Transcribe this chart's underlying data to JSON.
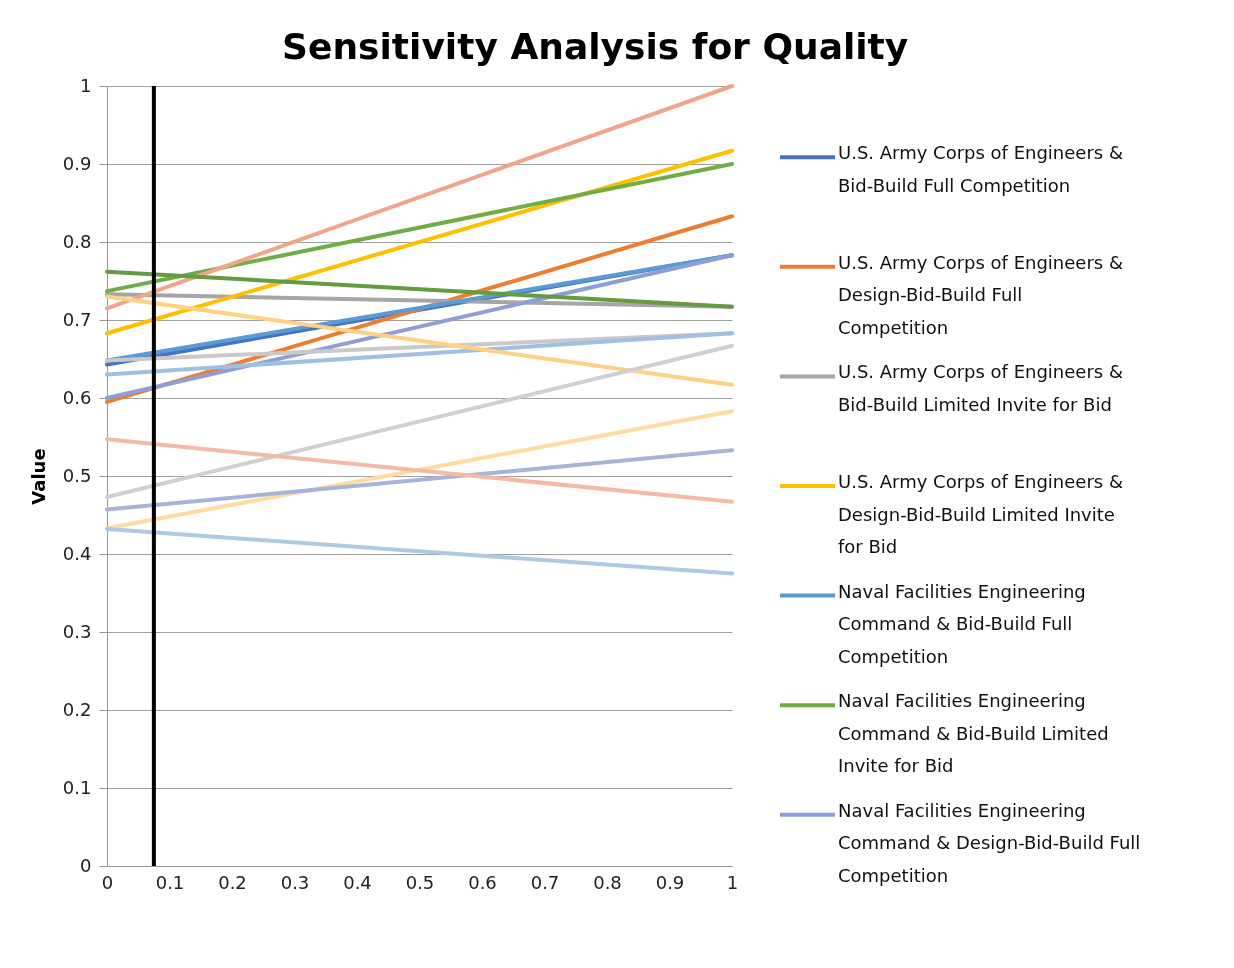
{
  "chart_data": {
    "type": "line",
    "title": "Sensitivity Analysis for Quality",
    "ylabel": "Value",
    "x": [
      0,
      1
    ],
    "series": [
      {
        "name": "U.S. Army Corps of Engineers & Bid-Build Full Competition",
        "color": "#4472c4",
        "values": [
          0.643,
          0.783
        ]
      },
      {
        "name": "U.S. Army Corps of Engineers & Design-Bid-Build Full Competition",
        "color": "#ed7d31",
        "values": [
          0.595,
          0.833
        ]
      },
      {
        "name": "U.S. Army Corps of Engineers & Bid-Build Limited Invite for Bid",
        "color": "#a5a5a5",
        "values": [
          0.733,
          0.717
        ]
      },
      {
        "name": "U.S. Army Corps of Engineers & Design-Bid-Build Limited Invite for Bid",
        "color": "#ffc000",
        "values": [
          0.683,
          0.917
        ]
      },
      {
        "name": "Naval Facilities Engineering Command & Bid-Build Full Competition",
        "color": "#5b9bd5",
        "values": [
          0.648,
          0.783
        ]
      },
      {
        "name": "Naval Facilities Engineering Command & Bid-Build Limited Invite for Bid",
        "color": "#70ad47",
        "values": [
          0.737,
          0.9
        ]
      },
      {
        "name": "Naval Facilities Engineering Command & Design-Bid-Build Full Competition",
        "color": "#8e9fd6",
        "values": [
          0.6,
          0.783
        ]
      },
      {
        "color": "#f1a68c",
        "values": [
          0.715,
          1.0
        ]
      },
      {
        "color": "#629b40",
        "values": [
          0.762,
          0.717
        ]
      },
      {
        "color": "#c9c9c9",
        "values": [
          0.648,
          0.683
        ]
      },
      {
        "color": "#9dc0e4",
        "values": [
          0.63,
          0.683
        ]
      },
      {
        "color": "#ffd182",
        "values": [
          0.73,
          0.617
        ]
      },
      {
        "color": "#d0d0d0",
        "values": [
          0.473,
          0.667
        ]
      },
      {
        "color": "#ffdba0",
        "values": [
          0.433,
          0.583
        ]
      },
      {
        "color": "#a8b3dc",
        "values": [
          0.457,
          0.533
        ]
      },
      {
        "color": "#f4baa6",
        "values": [
          0.547,
          0.467
        ]
      },
      {
        "color": "#aec8e8",
        "values": [
          0.432,
          0.375
        ]
      }
    ],
    "xlim": [
      0,
      1
    ],
    "ylim": [
      0,
      1
    ],
    "xticks": [
      0,
      0.1,
      0.2,
      0.3,
      0.4,
      0.5,
      0.6,
      0.7,
      0.8,
      0.9,
      1
    ],
    "yticks": [
      0,
      0.1,
      0.2,
      0.3,
      0.4,
      0.5,
      0.6,
      0.7,
      0.8,
      0.9,
      1
    ],
    "ref_lines": [
      {
        "axis": "x",
        "value": 0.075,
        "color": "#000000"
      }
    ],
    "grid": "y",
    "legend": "right",
    "line_style": "solid",
    "marker": "none"
  }
}
